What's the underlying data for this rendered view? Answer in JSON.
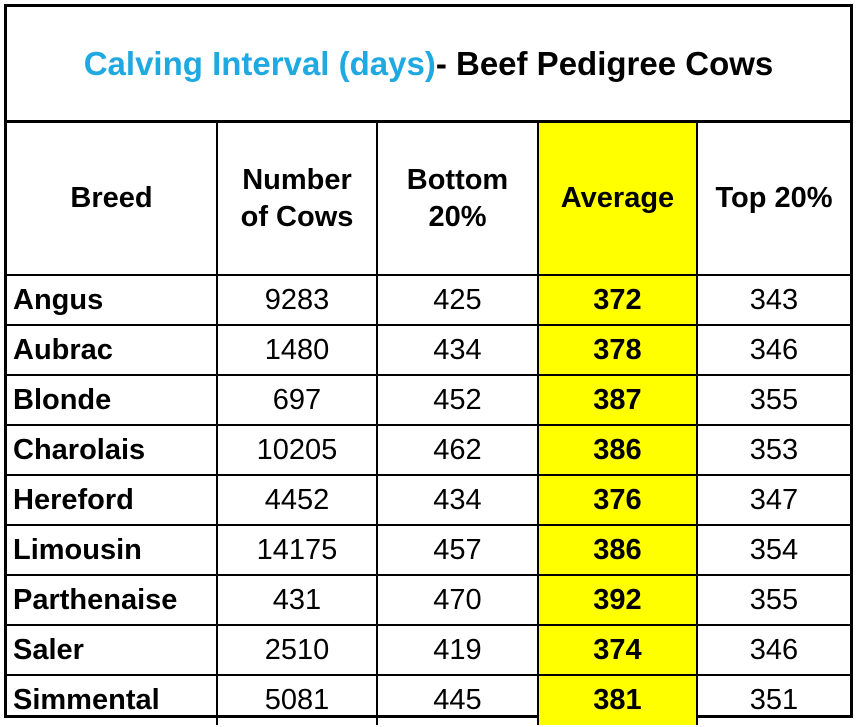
{
  "title": {
    "accent": "Calving Interval (days)",
    "rest": " - Beef Pedigree Cows"
  },
  "headers": {
    "breed": "Breed",
    "cows_line1": "Number",
    "cows_line2": "of Cows",
    "bottom_line1": "Bottom",
    "bottom_line2": "20%",
    "average": "Average",
    "top": "Top 20%"
  },
  "rows": [
    {
      "breed": "Angus",
      "cows": "9283",
      "bottom": "425",
      "average": "372",
      "top": "343"
    },
    {
      "breed": "Aubrac",
      "cows": "1480",
      "bottom": "434",
      "average": "378",
      "top": "346"
    },
    {
      "breed": "Blonde",
      "cows": "697",
      "bottom": "452",
      "average": "387",
      "top": "355"
    },
    {
      "breed": "Charolais",
      "cows": "10205",
      "bottom": "462",
      "average": "386",
      "top": "353"
    },
    {
      "breed": "Hereford",
      "cows": "4452",
      "bottom": "434",
      "average": "376",
      "top": "347"
    },
    {
      "breed": "Limousin",
      "cows": "14175",
      "bottom": "457",
      "average": "386",
      "top": "354"
    },
    {
      "breed": "Parthenaise",
      "cows": "431",
      "bottom": "470",
      "average": "392",
      "top": "355"
    },
    {
      "breed": "Saler",
      "cows": "2510",
      "bottom": "419",
      "average": "374",
      "top": "346"
    },
    {
      "breed": "Simmental",
      "cows": "5081",
      "bottom": "445",
      "average": "381",
      "top": "351"
    }
  ],
  "colors": {
    "title_accent": "#1fa9e0",
    "average_highlight": "#ffff00"
  }
}
